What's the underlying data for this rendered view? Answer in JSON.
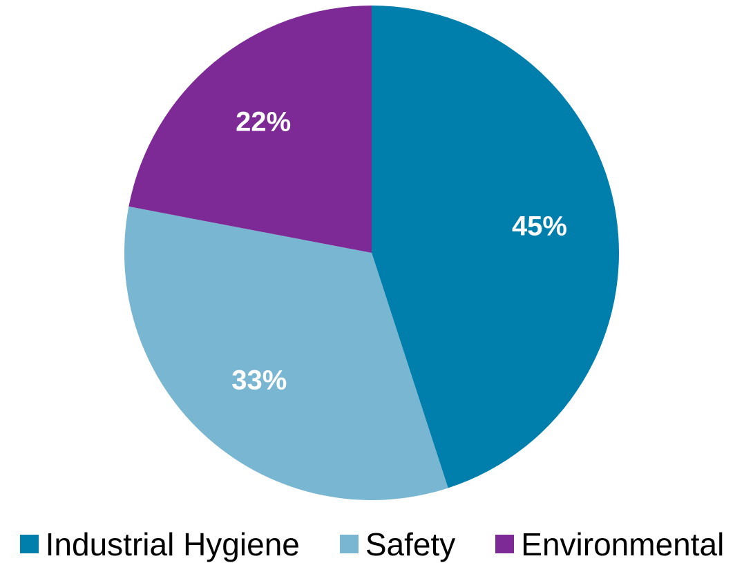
{
  "chart_data": {
    "type": "pie",
    "title": "",
    "categories": [
      "Industrial Hygiene",
      "Safety",
      "Environmental"
    ],
    "values": [
      45,
      33,
      22
    ],
    "labels": [
      "45%",
      "33%",
      "22%"
    ],
    "colors": [
      "#007FAD",
      "#79B6D1",
      "#7E2A96"
    ],
    "legend_placement": "bottom"
  }
}
